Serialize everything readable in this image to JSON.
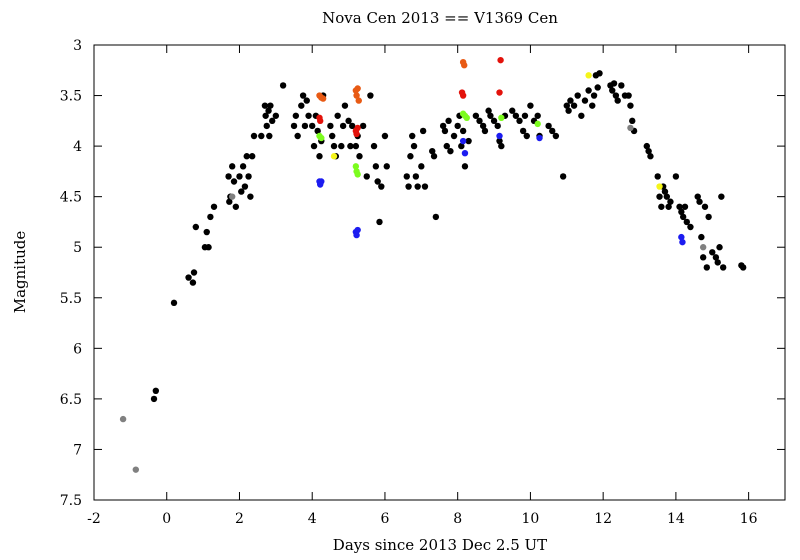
{
  "chart_data": {
    "type": "scatter",
    "title": "Nova Cen 2013 == V1369 Cen",
    "xlabel": "Days since 2013 Dec 2.5 UT",
    "ylabel": "Magnitude",
    "xlim": [
      -2,
      17
    ],
    "ylim": [
      7.5,
      3
    ],
    "y_inverted": true,
    "x_ticks": [
      -2,
      0,
      2,
      4,
      6,
      8,
      10,
      12,
      14,
      16
    ],
    "y_ticks": [
      3,
      3.5,
      4,
      4.5,
      5,
      5.5,
      6,
      6.5,
      7,
      7.5
    ],
    "y_tick_labels": [
      "3",
      "3.5",
      "4",
      "4.5",
      "5",
      "5.5",
      "6",
      "6.5",
      "7",
      "7.5"
    ],
    "grid": false,
    "series": [
      {
        "name": "visual (black)",
        "color": "#000000",
        "points": [
          [
            -0.35,
            6.5
          ],
          [
            -0.3,
            6.42
          ],
          [
            0.2,
            5.55
          ],
          [
            0.6,
            5.3
          ],
          [
            0.72,
            5.35
          ],
          [
            0.75,
            5.25
          ],
          [
            0.8,
            4.8
          ],
          [
            1.05,
            5.0
          ],
          [
            1.1,
            4.85
          ],
          [
            1.15,
            5.0
          ],
          [
            1.2,
            4.7
          ],
          [
            1.3,
            4.6
          ],
          [
            1.7,
            4.3
          ],
          [
            1.72,
            4.55
          ],
          [
            1.75,
            4.5
          ],
          [
            1.8,
            4.2
          ],
          [
            1.85,
            4.35
          ],
          [
            1.9,
            4.6
          ],
          [
            2.0,
            4.3
          ],
          [
            2.05,
            4.45
          ],
          [
            2.1,
            4.2
          ],
          [
            2.15,
            4.4
          ],
          [
            2.2,
            4.1
          ],
          [
            2.25,
            4.3
          ],
          [
            2.3,
            4.5
          ],
          [
            2.35,
            4.1
          ],
          [
            2.4,
            3.9
          ],
          [
            2.6,
            3.9
          ],
          [
            2.7,
            3.6
          ],
          [
            2.72,
            3.7
          ],
          [
            2.75,
            3.8
          ],
          [
            2.8,
            3.65
          ],
          [
            2.82,
            3.9
          ],
          [
            2.85,
            3.6
          ],
          [
            2.9,
            3.75
          ],
          [
            3.0,
            3.7
          ],
          [
            3.2,
            3.4
          ],
          [
            3.5,
            3.8
          ],
          [
            3.55,
            3.7
          ],
          [
            3.6,
            3.9
          ],
          [
            3.7,
            3.6
          ],
          [
            3.75,
            3.5
          ],
          [
            3.8,
            3.8
          ],
          [
            3.85,
            3.55
          ],
          [
            3.9,
            3.7
          ],
          [
            4.0,
            3.8
          ],
          [
            4.05,
            4.0
          ],
          [
            4.1,
            3.7
          ],
          [
            4.15,
            3.85
          ],
          [
            4.2,
            4.1
          ],
          [
            4.25,
            3.95
          ],
          [
            4.3,
            3.5
          ],
          [
            4.5,
            3.8
          ],
          [
            4.55,
            3.9
          ],
          [
            4.6,
            4.0
          ],
          [
            4.65,
            4.1
          ],
          [
            4.7,
            3.7
          ],
          [
            4.8,
            4.0
          ],
          [
            4.85,
            3.8
          ],
          [
            4.9,
            3.6
          ],
          [
            5.0,
            3.75
          ],
          [
            5.05,
            4.0
          ],
          [
            5.1,
            3.8
          ],
          [
            5.2,
            4.0
          ],
          [
            5.25,
            3.9
          ],
          [
            5.3,
            4.1
          ],
          [
            5.4,
            3.8
          ],
          [
            5.5,
            4.3
          ],
          [
            5.6,
            3.5
          ],
          [
            5.7,
            4.0
          ],
          [
            5.75,
            4.2
          ],
          [
            5.8,
            4.35
          ],
          [
            5.85,
            4.75
          ],
          [
            5.9,
            4.4
          ],
          [
            6.0,
            3.9
          ],
          [
            6.05,
            4.2
          ],
          [
            6.6,
            4.3
          ],
          [
            6.65,
            4.4
          ],
          [
            6.7,
            4.1
          ],
          [
            6.75,
            3.9
          ],
          [
            6.8,
            4.0
          ],
          [
            6.85,
            4.3
          ],
          [
            6.9,
            4.4
          ],
          [
            7.0,
            4.2
          ],
          [
            7.05,
            3.85
          ],
          [
            7.1,
            4.4
          ],
          [
            7.3,
            4.05
          ],
          [
            7.35,
            4.1
          ],
          [
            7.4,
            4.7
          ],
          [
            7.6,
            3.8
          ],
          [
            7.65,
            3.85
          ],
          [
            7.7,
            4.0
          ],
          [
            7.75,
            3.75
          ],
          [
            7.8,
            4.05
          ],
          [
            7.9,
            3.9
          ],
          [
            8.0,
            3.8
          ],
          [
            8.05,
            3.7
          ],
          [
            8.1,
            4.0
          ],
          [
            8.15,
            3.85
          ],
          [
            8.2,
            4.2
          ],
          [
            8.3,
            3.95
          ],
          [
            8.5,
            3.7
          ],
          [
            8.6,
            3.75
          ],
          [
            8.7,
            3.8
          ],
          [
            8.75,
            3.85
          ],
          [
            8.85,
            3.65
          ],
          [
            8.9,
            3.7
          ],
          [
            9.0,
            3.75
          ],
          [
            9.1,
            3.8
          ],
          [
            9.15,
            3.95
          ],
          [
            9.2,
            4.0
          ],
          [
            9.3,
            3.7
          ],
          [
            9.5,
            3.65
          ],
          [
            9.6,
            3.7
          ],
          [
            9.7,
            3.75
          ],
          [
            9.8,
            3.85
          ],
          [
            9.85,
            3.7
          ],
          [
            9.9,
            3.9
          ],
          [
            10.0,
            3.6
          ],
          [
            10.1,
            3.75
          ],
          [
            10.2,
            3.7
          ],
          [
            10.25,
            3.9
          ],
          [
            10.5,
            3.8
          ],
          [
            10.6,
            3.85
          ],
          [
            10.7,
            3.9
          ],
          [
            10.9,
            4.3
          ],
          [
            11.0,
            3.6
          ],
          [
            11.05,
            3.65
          ],
          [
            11.1,
            3.55
          ],
          [
            11.2,
            3.6
          ],
          [
            11.3,
            3.5
          ],
          [
            11.4,
            3.7
          ],
          [
            11.5,
            3.55
          ],
          [
            11.6,
            3.45
          ],
          [
            11.7,
            3.6
          ],
          [
            11.75,
            3.5
          ],
          [
            11.8,
            3.3
          ],
          [
            11.85,
            3.42
          ],
          [
            11.9,
            3.28
          ],
          [
            12.2,
            3.4
          ],
          [
            12.25,
            3.45
          ],
          [
            12.3,
            3.38
          ],
          [
            12.35,
            3.5
          ],
          [
            12.4,
            3.55
          ],
          [
            12.5,
            3.4
          ],
          [
            12.6,
            3.5
          ],
          [
            12.7,
            3.5
          ],
          [
            12.75,
            3.6
          ],
          [
            12.8,
            3.75
          ],
          [
            12.85,
            3.85
          ],
          [
            13.2,
            4.0
          ],
          [
            13.25,
            4.05
          ],
          [
            13.3,
            4.1
          ],
          [
            13.5,
            4.3
          ],
          [
            13.55,
            4.5
          ],
          [
            13.6,
            4.6
          ],
          [
            13.65,
            4.4
          ],
          [
            13.7,
            4.45
          ],
          [
            13.75,
            4.5
          ],
          [
            13.8,
            4.6
          ],
          [
            13.85,
            4.55
          ],
          [
            14.0,
            4.3
          ],
          [
            14.1,
            4.6
          ],
          [
            14.15,
            4.65
          ],
          [
            14.2,
            4.7
          ],
          [
            14.25,
            4.6
          ],
          [
            14.3,
            4.75
          ],
          [
            14.4,
            4.8
          ],
          [
            14.6,
            4.5
          ],
          [
            14.65,
            4.55
          ],
          [
            14.7,
            4.9
          ],
          [
            14.75,
            5.1
          ],
          [
            14.8,
            4.6
          ],
          [
            14.85,
            5.2
          ],
          [
            14.9,
            4.7
          ],
          [
            15.0,
            5.05
          ],
          [
            15.1,
            5.1
          ],
          [
            15.15,
            5.15
          ],
          [
            15.2,
            5.0
          ],
          [
            15.25,
            4.5
          ],
          [
            15.3,
            5.2
          ],
          [
            15.8,
            5.18
          ],
          [
            15.85,
            5.2
          ]
        ]
      },
      {
        "name": "gray",
        "color": "#808080",
        "points": [
          [
            -1.2,
            6.7
          ],
          [
            -0.85,
            7.2
          ],
          [
            1.8,
            4.5
          ],
          [
            12.75,
            3.82
          ],
          [
            14.75,
            5.0
          ]
        ]
      },
      {
        "name": "red",
        "color": "#e3120b",
        "points": [
          [
            4.2,
            3.72
          ],
          [
            4.22,
            3.75
          ],
          [
            5.2,
            3.85
          ],
          [
            5.22,
            3.88
          ],
          [
            5.25,
            3.82
          ],
          [
            8.12,
            3.47
          ],
          [
            8.15,
            3.5
          ],
          [
            9.15,
            3.47
          ],
          [
            9.18,
            3.15
          ]
        ]
      },
      {
        "name": "orange-red",
        "color": "#e85a14",
        "points": [
          [
            4.2,
            3.5
          ],
          [
            4.25,
            3.52
          ],
          [
            4.3,
            3.53
          ],
          [
            5.2,
            3.45
          ],
          [
            5.22,
            3.5
          ],
          [
            5.25,
            3.43
          ],
          [
            5.28,
            3.55
          ],
          [
            8.15,
            3.17
          ],
          [
            8.18,
            3.2
          ]
        ]
      },
      {
        "name": "green",
        "color": "#7cfc1e",
        "points": [
          [
            4.2,
            3.9
          ],
          [
            4.25,
            3.92
          ],
          [
            5.2,
            4.2
          ],
          [
            5.22,
            4.25
          ],
          [
            5.25,
            4.28
          ],
          [
            8.15,
            3.68
          ],
          [
            8.2,
            3.7
          ],
          [
            8.25,
            3.72
          ],
          [
            9.2,
            3.72
          ],
          [
            10.2,
            3.78
          ]
        ]
      },
      {
        "name": "blue",
        "color": "#1c1cf0",
        "points": [
          [
            4.2,
            4.35
          ],
          [
            4.22,
            4.38
          ],
          [
            4.25,
            4.35
          ],
          [
            5.2,
            4.85
          ],
          [
            5.22,
            4.88
          ],
          [
            5.25,
            4.83
          ],
          [
            8.15,
            3.95
          ],
          [
            8.2,
            4.07
          ],
          [
            9.15,
            3.9
          ],
          [
            10.25,
            3.92
          ],
          [
            14.15,
            4.9
          ],
          [
            14.18,
            4.95
          ]
        ]
      },
      {
        "name": "yellow",
        "color": "#f5f51a",
        "points": [
          [
            4.6,
            4.1
          ],
          [
            11.6,
            3.3
          ],
          [
            13.55,
            4.4
          ]
        ]
      }
    ]
  }
}
